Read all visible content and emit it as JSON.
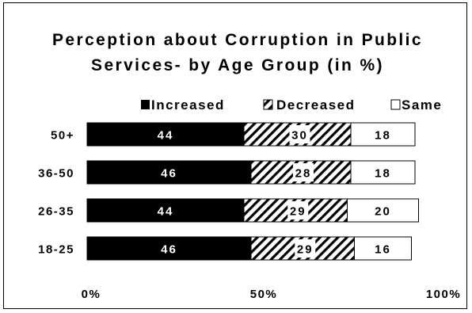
{
  "chart_data": {
    "type": "bar",
    "stacked": true,
    "orientation": "horizontal",
    "title_lines": [
      "Perception about Corruption in Public",
      "Services-  by Age Group (in %)"
    ],
    "categories": [
      "50+",
      "36-50",
      "26-35",
      "18-25"
    ],
    "series": [
      {
        "name": "Increased",
        "values": [
          44,
          46,
          44,
          46
        ],
        "fill": "solid",
        "color": "#000000"
      },
      {
        "name": "Decreased",
        "values": [
          30,
          28,
          29,
          29
        ],
        "fill": "hatch",
        "color": "#000000"
      },
      {
        "name": "Same",
        "values": [
          18,
          18,
          20,
          16
        ],
        "fill": "white",
        "color": "#ffffff"
      }
    ],
    "xlim": [
      0,
      100
    ],
    "x_ticks": [
      "0%",
      "50%",
      "100%"
    ],
    "legend_position": "top",
    "grid": false
  }
}
